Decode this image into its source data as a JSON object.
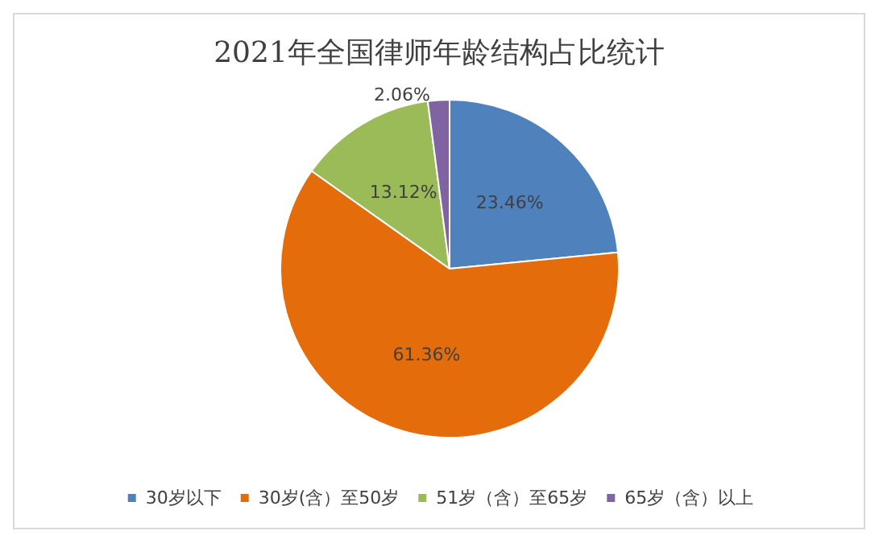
{
  "chart_data": {
    "type": "pie",
    "title": "2021年全国律师年龄结构占比统计",
    "categories": [
      "30岁以下",
      "30岁(含）至50岁",
      "51岁（含）至65岁",
      "65岁（含）以上"
    ],
    "values": [
      23.46,
      61.36,
      13.12,
      2.06
    ],
    "colors": [
      "#4f81bd",
      "#e46c0a",
      "#9bbb59",
      "#8064a2"
    ],
    "value_labels": [
      "23.46%",
      "61.36%",
      "13.12%",
      "2.06%"
    ],
    "legend": "bottom"
  }
}
